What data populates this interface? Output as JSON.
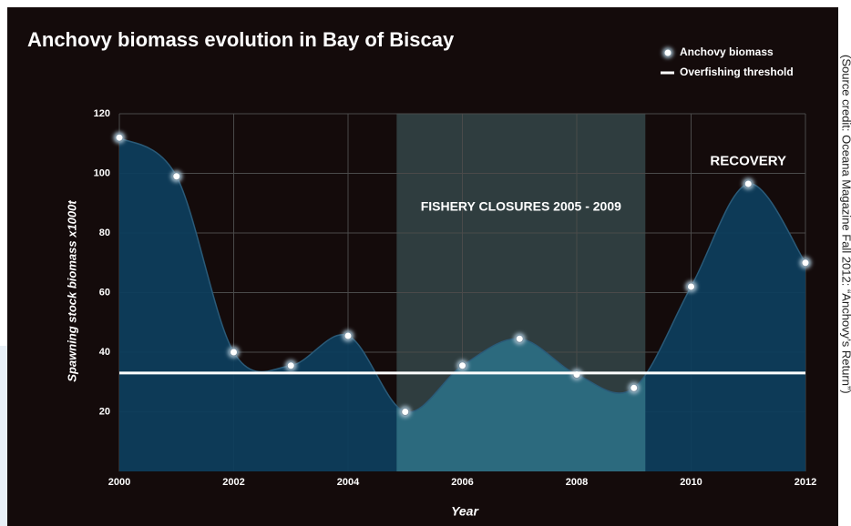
{
  "chart_data": {
    "type": "area",
    "title": "Anchovy biomass evolution in Bay of Biscay",
    "x_label": "Year",
    "y_label": "Spawning stock biomass  x1000t",
    "source": "(Source credit: Oceana Magazine Fall 2012: “Anchovy’s Return”)",
    "x": [
      2000,
      2001,
      2002,
      2003,
      2004,
      2005,
      2006,
      2007,
      2008,
      2009,
      2010,
      2011,
      2012
    ],
    "series": [
      {
        "name": "Anchovy biomass",
        "color": "#0d3d5c",
        "highlight_color": "#2c6a7e",
        "values": [
          112,
          99,
          40,
          35.5,
          45.5,
          20,
          35.5,
          44.5,
          32.5,
          28,
          62,
          96.5,
          70
        ]
      }
    ],
    "threshold": {
      "name": "Overfishing threshold",
      "value": 33,
      "color": "#ffffff"
    },
    "shade": {
      "range": [
        2004.85,
        2009.2
      ],
      "color": "#2f3d3f",
      "label": "FISHERY CLOSURES 2005 - 2009"
    },
    "annotations": [
      {
        "text": "RECOVERY",
        "x": 2011,
        "y": 104
      }
    ],
    "xlim": [
      2000,
      2012
    ],
    "xticks": [
      2000,
      2002,
      2004,
      2006,
      2008,
      2010,
      2012
    ],
    "ylim": [
      0,
      120
    ],
    "yticks": [
      20,
      40,
      60,
      80,
      100,
      120
    ],
    "grid": true,
    "legend": "top-right"
  }
}
